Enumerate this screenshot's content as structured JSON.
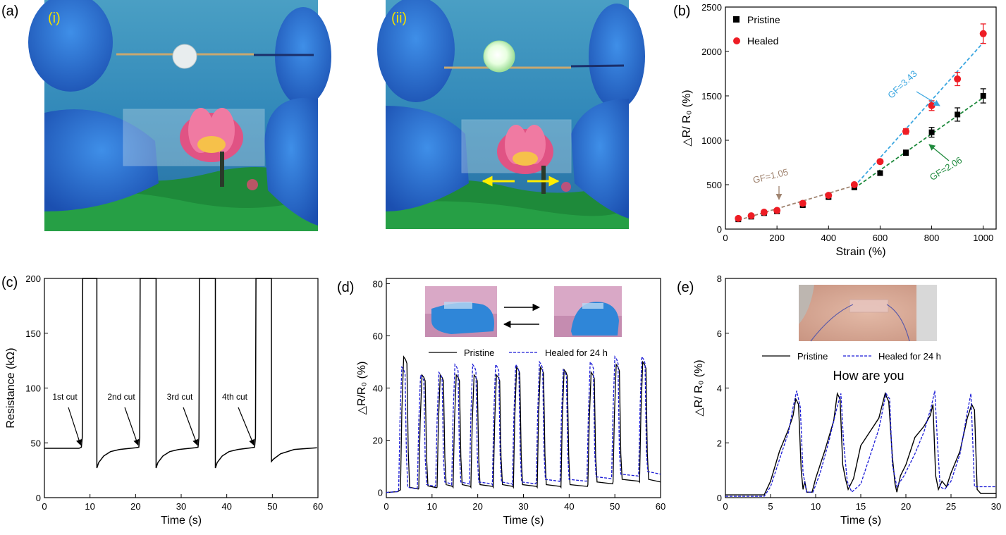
{
  "panels": {
    "a": {
      "label": "(a)",
      "sub1": "(i)",
      "sub2": "(ii)"
    },
    "b": {
      "label": "(b)"
    },
    "c": {
      "label": "(c)"
    },
    "d": {
      "label": "(d)"
    },
    "e": {
      "label": "(e)"
    }
  },
  "colors": {
    "pristine": "#000000",
    "healed": "#ee1c24",
    "gf343": "#3aa6e0",
    "gf206": "#1f8a3d",
    "gf105": "#a08470",
    "healed_line": "#1a1ad6",
    "arrow_yellow": "#ffee00"
  },
  "chart_data": [
    {
      "id": "b",
      "type": "scatter",
      "xlabel": "Strain (%)",
      "ylabel": "△R/ R₀ (%)",
      "xlim": [
        0,
        1050
      ],
      "ylim": [
        0,
        2500
      ],
      "xticks": [
        0,
        200,
        400,
        600,
        800,
        1000
      ],
      "yticks": [
        0,
        500,
        1000,
        1500,
        2000,
        2500
      ],
      "legend_position": "top-left",
      "series": [
        {
          "name": "Pristine",
          "marker": "square",
          "x": [
            50,
            100,
            150,
            200,
            300,
            400,
            500,
            600,
            700,
            800,
            900,
            1000
          ],
          "y": [
            110,
            140,
            180,
            200,
            270,
            360,
            470,
            630,
            860,
            1090,
            1290,
            1500
          ],
          "err": [
            10,
            10,
            15,
            15,
            20,
            20,
            20,
            25,
            30,
            55,
            75,
            80
          ]
        },
        {
          "name": "Healed",
          "marker": "circle",
          "x": [
            50,
            100,
            150,
            200,
            300,
            400,
            500,
            600,
            700,
            800,
            900,
            1000
          ],
          "y": [
            120,
            150,
            190,
            210,
            290,
            380,
            500,
            760,
            1100,
            1390,
            1690,
            2200
          ],
          "err": [
            10,
            10,
            15,
            15,
            20,
            20,
            20,
            25,
            30,
            55,
            75,
            110
          ]
        }
      ],
      "fit_lines": [
        {
          "label": "GF=1.05",
          "x": [
            50,
            500
          ],
          "y": [
            100,
            490
          ]
        },
        {
          "label": "GF=3.43",
          "x": [
            500,
            1000
          ],
          "y": [
            480,
            2100
          ]
        },
        {
          "label": "GF=2.06",
          "x": [
            500,
            1000
          ],
          "y": [
            460,
            1480
          ]
        }
      ]
    },
    {
      "id": "c",
      "type": "line",
      "xlabel": "Time (s)",
      "ylabel": "Resistance (kΩ)",
      "xlim": [
        0,
        60
      ],
      "ylim": [
        0,
        200
      ],
      "xticks": [
        0,
        10,
        20,
        30,
        40,
        50,
        60
      ],
      "yticks": [
        0,
        50,
        100,
        150,
        200
      ],
      "annotations": [
        "1st cut",
        "2nd cut",
        "3rd cut",
        "4th cut"
      ],
      "cut_times": [
        8.4,
        21,
        34,
        46.4
      ],
      "reconnect_times": [
        11.5,
        24.5,
        37.5,
        49.8
      ]
    },
    {
      "id": "d",
      "type": "line",
      "xlabel": "Time (s)",
      "ylabel": "△R/R₀ (%)",
      "xlim": [
        0,
        60
      ],
      "ylim": [
        -2,
        82
      ],
      "xticks": [
        0,
        10,
        20,
        30,
        40,
        50,
        60
      ],
      "yticks": [
        0,
        20,
        40,
        60,
        80
      ],
      "legend_position": "top-center",
      "series": [
        {
          "name": "Pristine",
          "style": "solid",
          "peak_times": [
            4.2,
            8.2,
            12.2,
            15.7,
            19.6,
            24.5,
            28.9,
            34.1,
            39.3,
            45.2,
            50.7,
            56.5
          ],
          "peak_values": [
            52,
            45,
            45,
            45,
            45,
            45,
            48,
            48,
            47,
            46,
            49,
            50
          ],
          "baseline": [
            1,
            1.5,
            2,
            2,
            2,
            2,
            2,
            2,
            2,
            3,
            4,
            4
          ]
        },
        {
          "name": "Healed for 24 h",
          "style": "dashed",
          "peak_times": [
            3.8,
            7.9,
            11.9,
            15.4,
            19.3,
            24.3,
            28.7,
            33.9,
            39.1,
            45.0,
            50.4,
            56.3
          ],
          "peak_values": [
            48,
            45,
            46,
            49,
            49,
            49,
            49,
            50,
            47,
            50,
            52,
            52
          ],
          "baseline": [
            1,
            2,
            3,
            3,
            3,
            3,
            3,
            4,
            4,
            5,
            6,
            7
          ]
        }
      ]
    },
    {
      "id": "e",
      "type": "line",
      "xlabel": "Time (s)",
      "ylabel": "△R/ R₀ (%)",
      "xlim": [
        0,
        30
      ],
      "ylim": [
        0,
        8
      ],
      "xticks": [
        0,
        5,
        10,
        15,
        20,
        25,
        30
      ],
      "yticks": [
        0,
        2,
        4,
        6,
        8
      ],
      "annotation": "How are you",
      "legend_position": "top-center",
      "series": [
        {
          "name": "Pristine",
          "style": "solid"
        },
        {
          "name": "Healed for 24 h",
          "style": "dashed"
        }
      ]
    }
  ]
}
